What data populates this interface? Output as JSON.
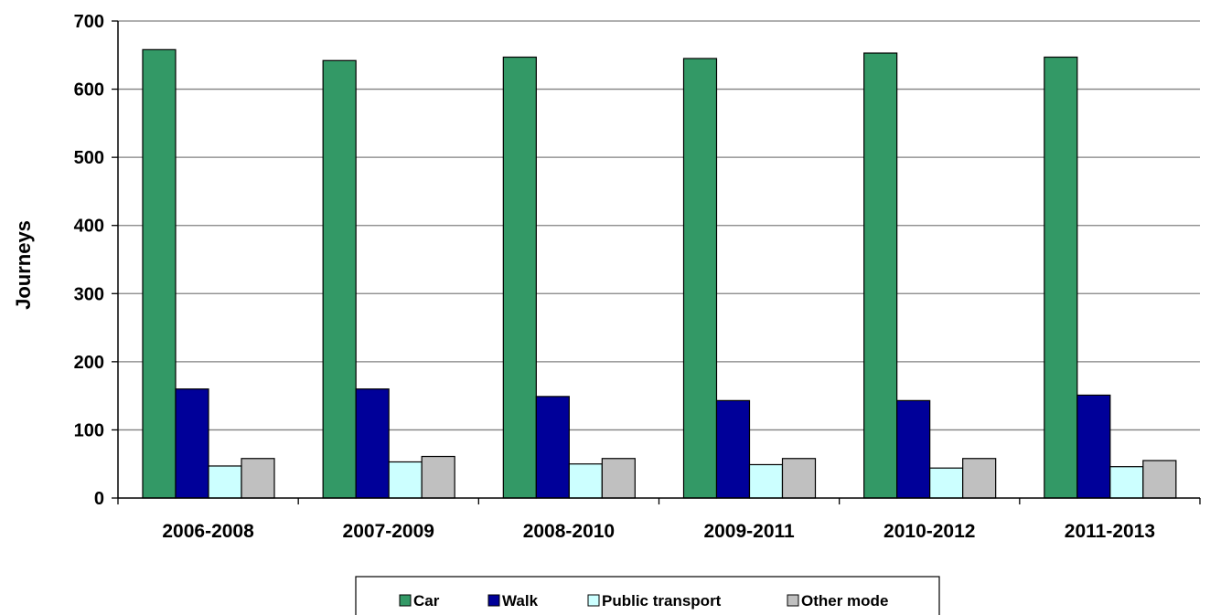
{
  "chart_data": {
    "type": "bar",
    "title": "",
    "xlabel": "",
    "ylabel": "Journeys",
    "ylim": [
      0,
      700
    ],
    "yticks": [
      "0",
      "100",
      "200",
      "300",
      "400",
      "500",
      "600",
      "700"
    ],
    "grid": true,
    "legend_position": "bottom",
    "categories": [
      "2006-2008",
      "2007-2009",
      "2008-2010",
      "2009-2011",
      "2010-2012",
      "2011-2013"
    ],
    "series": [
      {
        "name": "Car",
        "color": "#339966",
        "values": [
          658,
          642,
          647,
          645,
          653,
          647
        ]
      },
      {
        "name": "Walk",
        "color": "#000099",
        "values": [
          160,
          160,
          149,
          143,
          143,
          151
        ]
      },
      {
        "name": "Public transport",
        "color": "#ccffff",
        "values": [
          47,
          53,
          50,
          49,
          44,
          46
        ]
      },
      {
        "name": "Other mode",
        "color": "#c0c0c0",
        "values": [
          58,
          61,
          58,
          58,
          58,
          55
        ]
      }
    ]
  }
}
